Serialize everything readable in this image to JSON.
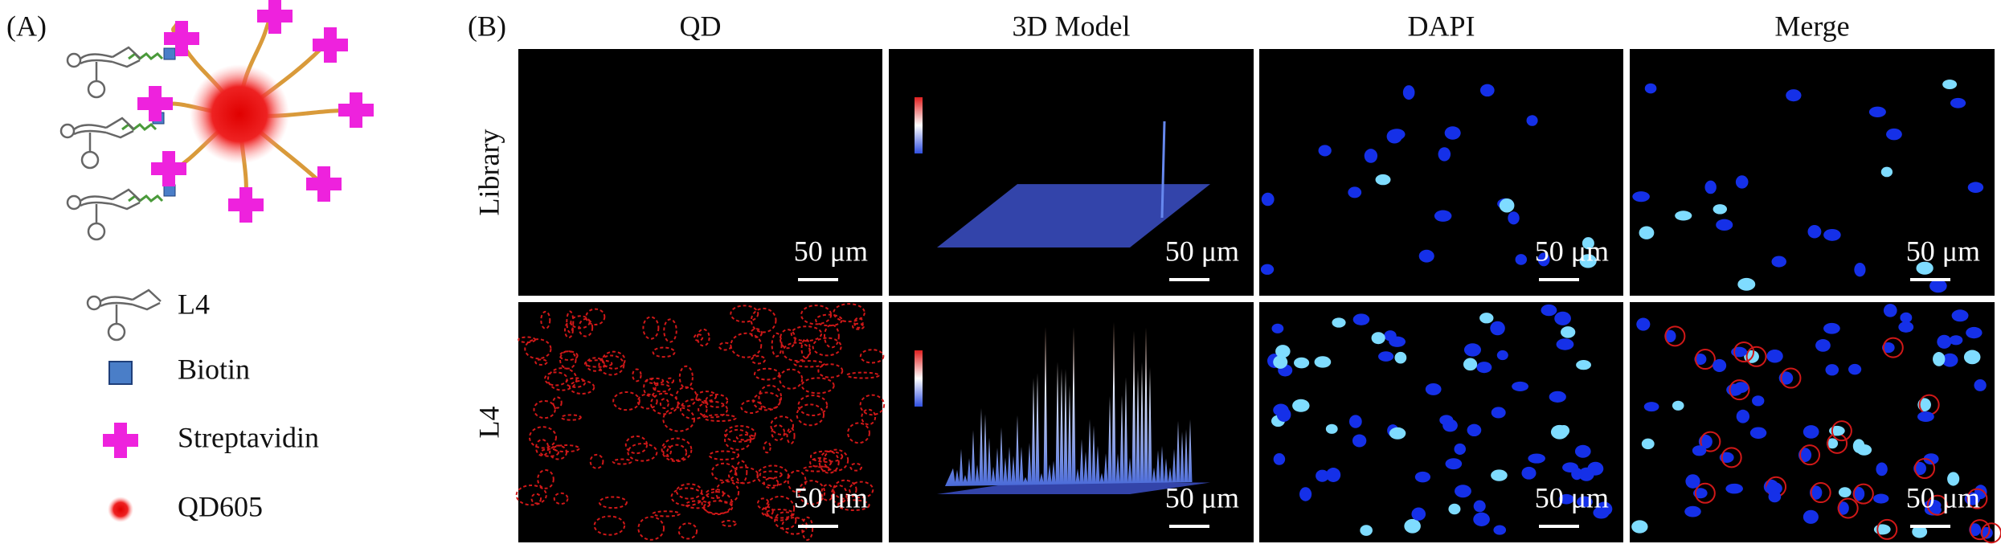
{
  "panel_a": {
    "label": "(A)",
    "legend": [
      "L4",
      "Biotin",
      "Streptavidin",
      "QD605"
    ]
  },
  "panel_b": {
    "label": "(B)",
    "columns": [
      "QD",
      "3D Model",
      "DAPI",
      "Merge"
    ],
    "rows": [
      "Library",
      "L4"
    ],
    "scale_bar": "50 μm"
  }
}
